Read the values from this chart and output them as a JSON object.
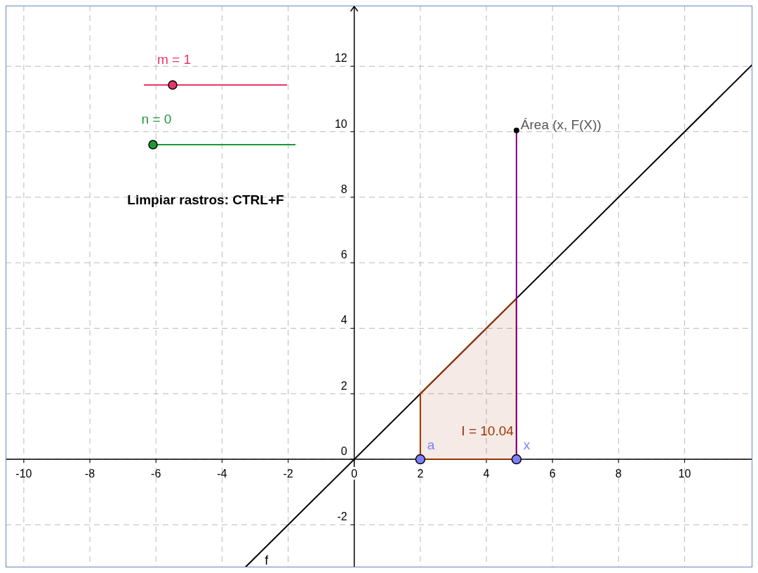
{
  "chart_data": {
    "type": "line",
    "xlim": [
      -10.55,
      12.05
    ],
    "ylim": [
      -3.3,
      13.85
    ],
    "xticks": [
      -10,
      -8,
      -6,
      -4,
      -2,
      0,
      2,
      4,
      6,
      8,
      10
    ],
    "yticks": [
      -2,
      0,
      2,
      4,
      6,
      8,
      10,
      12
    ],
    "grid": true,
    "series": [
      {
        "name": "f",
        "color": "#000000",
        "x": [
          -3.3,
          12.05
        ],
        "values": [
          -3.3,
          12.05
        ]
      },
      {
        "type": "area",
        "color": "#993300",
        "x": [
          2,
          4.91
        ],
        "values": [
          2,
          4.91
        ]
      },
      {
        "type": "line",
        "color": "#7f007f",
        "x": [
          4.91,
          4.91
        ],
        "values": [
          0,
          10.04
        ]
      },
      {
        "type": "scatter",
        "color": "#7f7fff",
        "x": [
          2,
          4.91
        ],
        "values": [
          0,
          0
        ]
      },
      {
        "type": "scatter",
        "color": "#000000",
        "x": [
          4.91
        ],
        "values": [
          10.04
        ]
      }
    ],
    "annotations": [
      "a",
      "x",
      "Área (x, F(X))",
      "I = 10.04",
      "m = 1",
      "n = 0",
      "Limpiar rastros: CTRL+F"
    ]
  }
}
